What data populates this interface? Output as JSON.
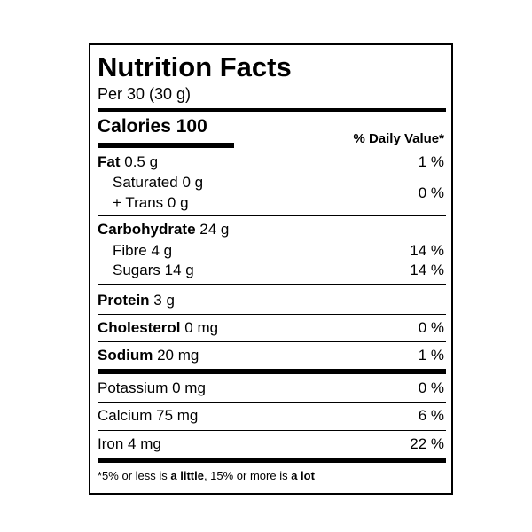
{
  "title": "Nutrition Facts",
  "serving": "Per 30 (30 g)",
  "calories": {
    "label": "Calories",
    "value": "100"
  },
  "daily_value_header": "% Daily Value*",
  "nutrients": {
    "fat": {
      "label": "Fat",
      "amount": "0.5 g",
      "dv": "1 %"
    },
    "saturated": {
      "label": "Saturated",
      "amount": "0 g"
    },
    "trans": {
      "label": "+ Trans",
      "amount": "0 g"
    },
    "sat_trans_dv": "0 %",
    "carbohydrate": {
      "label": "Carbohydrate",
      "amount": "24 g"
    },
    "fibre": {
      "label": "Fibre",
      "amount": "4 g",
      "dv": "14 %"
    },
    "sugars": {
      "label": "Sugars",
      "amount": "14 g",
      "dv": "14 %"
    },
    "protein": {
      "label": "Protein",
      "amount": "3 g"
    },
    "cholesterol": {
      "label": "Cholesterol",
      "amount": "0 mg",
      "dv": "0 %"
    },
    "sodium": {
      "label": "Sodium",
      "amount": "20 mg",
      "dv": "1 %"
    },
    "potassium": {
      "label": "Potassium",
      "amount": "0 mg",
      "dv": "0 %"
    },
    "calcium": {
      "label": "Calcium",
      "amount": "75 mg",
      "dv": "6 %"
    },
    "iron": {
      "label": "Iron",
      "amount": "4 mg",
      "dv": "22 %"
    }
  },
  "footnote": {
    "prefix": "*5% or less is ",
    "little": "a little",
    "middle": ", 15% or more is ",
    "lot": "a lot"
  }
}
